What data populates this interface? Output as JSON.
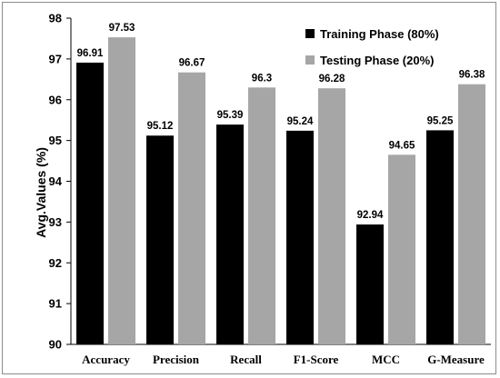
{
  "chart_data": {
    "type": "bar",
    "title": "",
    "xlabel": "",
    "ylabel": "Avg.Values (%)",
    "ylim": [
      90,
      98
    ],
    "yticks": [
      90,
      91,
      92,
      93,
      94,
      95,
      96,
      97,
      98
    ],
    "categories": [
      "Accuracy",
      "Precision",
      "Recall",
      "F1-Score",
      "MCC",
      "G-Measure"
    ],
    "series": [
      {
        "name": "Training Phase (80%)",
        "color": "#000000",
        "values": [
          96.91,
          95.12,
          95.39,
          95.24,
          92.94,
          95.25
        ],
        "labels": [
          "96.91",
          "95.12",
          "95.39",
          "95.24",
          "92.94",
          "95.25"
        ]
      },
      {
        "name": "Testing Phase (20%)",
        "color": "#a6a6a6",
        "values": [
          97.53,
          96.67,
          96.3,
          96.28,
          94.65,
          96.38
        ],
        "labels": [
          "97.53",
          "96.67",
          "96.3",
          "96.28",
          "94.65",
          "96.38"
        ]
      }
    ],
    "grid": false,
    "legend_position": "top-right"
  }
}
